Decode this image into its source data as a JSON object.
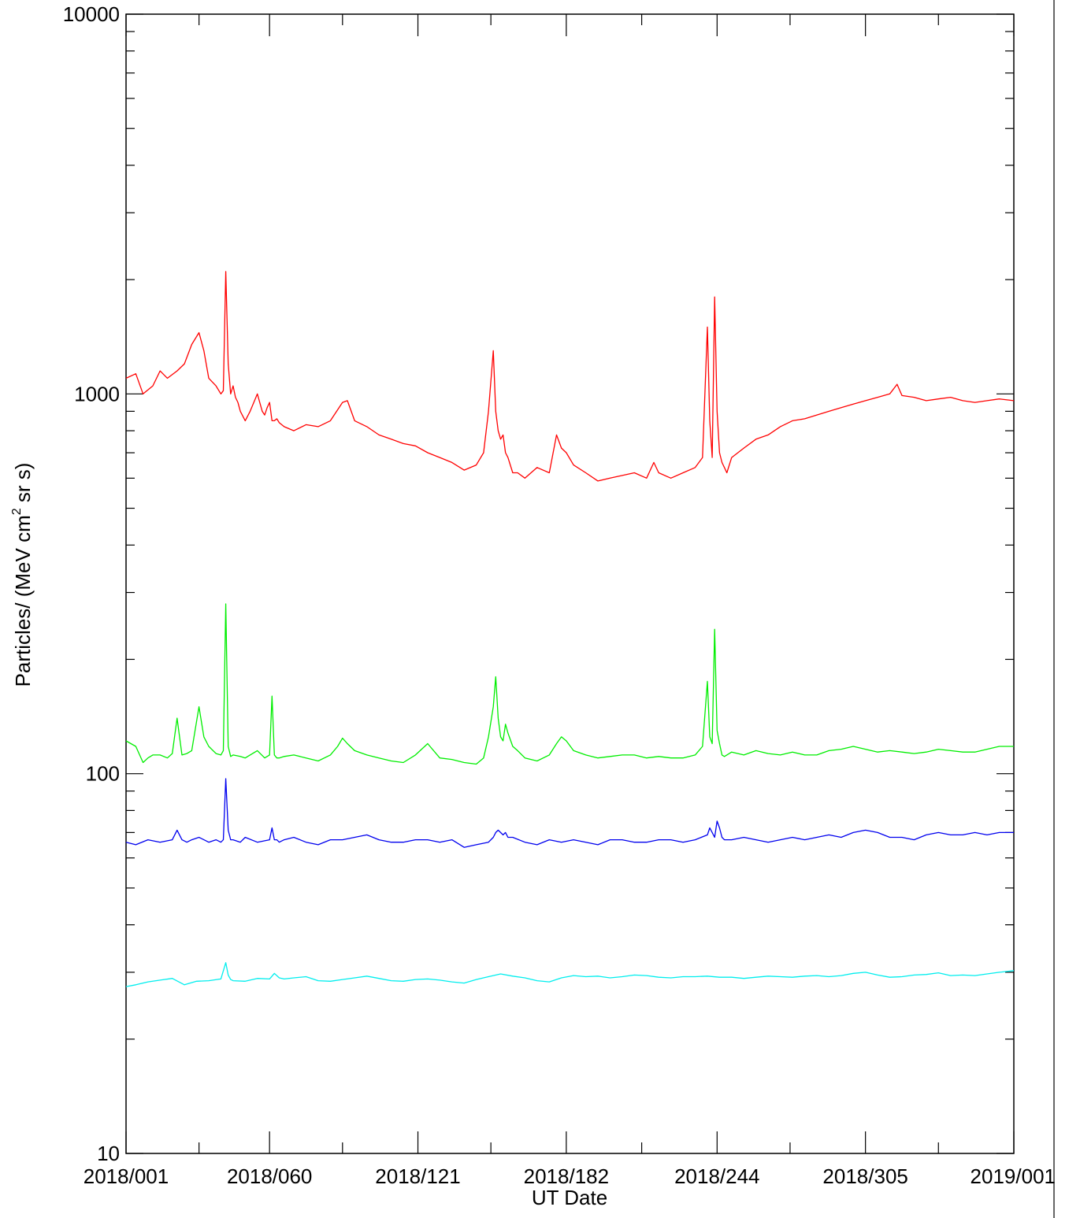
{
  "chart_data": {
    "type": "line",
    "title": "",
    "xlabel": "UT Date",
    "ylabel_prefix": "Particles/ (MeV cm",
    "ylabel_sup": "2",
    "ylabel_suffix": " sr s)",
    "yscale": "log",
    "ylim": [
      10,
      10000
    ],
    "xlim_doy": [
      1,
      366
    ],
    "x_ticks": [
      {
        "doy": 1,
        "label": "2018/001"
      },
      {
        "doy": 60,
        "label": "2018/060"
      },
      {
        "doy": 121,
        "label": "2018/121"
      },
      {
        "doy": 182,
        "label": "2018/182"
      },
      {
        "doy": 244,
        "label": "2018/244"
      },
      {
        "doy": 305,
        "label": "2018/305"
      },
      {
        "doy": 366,
        "label": "2019/001"
      }
    ],
    "y_ticks": [
      {
        "value": 10,
        "label": "10"
      },
      {
        "value": 100,
        "label": "100"
      },
      {
        "value": 1000,
        "label": "1000"
      },
      {
        "value": 10000,
        "label": "10000"
      }
    ],
    "x_minor_ticks": [
      31,
      90,
      151,
      213,
      274,
      335
    ],
    "legend": "none",
    "grid": false,
    "series": [
      {
        "color": "#ff0000",
        "x": [
          1,
          5,
          8,
          12,
          15,
          18,
          22,
          25,
          28,
          31,
          33,
          35,
          38,
          40,
          41,
          42,
          43,
          44,
          45,
          46,
          47,
          48,
          50,
          52,
          55,
          57,
          58,
          59,
          60,
          61,
          62,
          63,
          64,
          66,
          70,
          75,
          80,
          85,
          90,
          92,
          95,
          100,
          105,
          110,
          115,
          120,
          125,
          130,
          135,
          140,
          145,
          148,
          150,
          152,
          153,
          154,
          155,
          156,
          157,
          158,
          160,
          162,
          165,
          170,
          175,
          178,
          180,
          182,
          185,
          190,
          195,
          200,
          205,
          210,
          215,
          218,
          220,
          225,
          230,
          235,
          238,
          240,
          241,
          242,
          243,
          244,
          245,
          246,
          247,
          248,
          250,
          255,
          260,
          265,
          270,
          275,
          280,
          285,
          290,
          295,
          300,
          305,
          310,
          315,
          318,
          320,
          325,
          330,
          335,
          340,
          345,
          350,
          355,
          360,
          366
        ],
        "y": [
          1100,
          1130,
          1000,
          1050,
          1150,
          1100,
          1150,
          1200,
          1350,
          1450,
          1300,
          1100,
          1050,
          1000,
          1020,
          2100,
          1200,
          1000,
          1050,
          980,
          950,
          900,
          850,
          900,
          1000,
          900,
          880,
          920,
          950,
          850,
          850,
          860,
          840,
          820,
          800,
          830,
          820,
          850,
          950,
          960,
          850,
          820,
          780,
          760,
          740,
          730,
          700,
          680,
          660,
          630,
          650,
          700,
          900,
          1300,
          900,
          800,
          760,
          780,
          700,
          680,
          620,
          620,
          600,
          640,
          620,
          780,
          720,
          700,
          650,
          620,
          590,
          600,
          610,
          620,
          600,
          660,
          620,
          600,
          620,
          640,
          680,
          1500,
          850,
          680,
          1800,
          900,
          700,
          660,
          640,
          620,
          680,
          720,
          760,
          780,
          820,
          850,
          860,
          880,
          900,
          920,
          940,
          960,
          980,
          1000,
          1060,
          990,
          980,
          960,
          970,
          980,
          960,
          950,
          960,
          970,
          960
        ]
      },
      {
        "color": "#00ee00",
        "x": [
          1,
          3,
          5,
          8,
          10,
          12,
          15,
          18,
          20,
          22,
          24,
          26,
          28,
          31,
          33,
          35,
          38,
          40,
          41,
          42,
          43,
          44,
          45,
          48,
          50,
          52,
          55,
          58,
          60,
          61,
          62,
          63,
          64,
          66,
          70,
          75,
          80,
          85,
          88,
          90,
          92,
          95,
          100,
          105,
          110,
          115,
          120,
          125,
          130,
          135,
          140,
          145,
          148,
          150,
          152,
          153,
          154,
          155,
          156,
          157,
          158,
          160,
          162,
          165,
          170,
          175,
          178,
          180,
          182,
          185,
          190,
          195,
          200,
          205,
          210,
          215,
          220,
          225,
          230,
          235,
          238,
          240,
          241,
          242,
          243,
          244,
          245,
          246,
          247,
          248,
          250,
          255,
          260,
          265,
          270,
          275,
          280,
          285,
          290,
          295,
          300,
          305,
          310,
          315,
          320,
          325,
          330,
          335,
          340,
          345,
          350,
          355,
          360,
          366
        ],
        "y": [
          122,
          120,
          118,
          107,
          110,
          112,
          112,
          110,
          113,
          140,
          112,
          113,
          115,
          150,
          125,
          118,
          113,
          112,
          115,
          280,
          118,
          111,
          112,
          111,
          110,
          112,
          115,
          110,
          112,
          160,
          112,
          110,
          110,
          111,
          112,
          110,
          108,
          112,
          118,
          124,
          120,
          115,
          112,
          110,
          108,
          107,
          112,
          120,
          110,
          109,
          107,
          106,
          110,
          125,
          150,
          180,
          140,
          125,
          122,
          135,
          128,
          118,
          115,
          110,
          108,
          112,
          120,
          125,
          122,
          115,
          112,
          110,
          111,
          112,
          112,
          110,
          111,
          110,
          110,
          112,
          118,
          175,
          125,
          120,
          240,
          130,
          120,
          112,
          111,
          112,
          114,
          112,
          115,
          113,
          112,
          114,
          112,
          112,
          115,
          116,
          118,
          116,
          114,
          115,
          114,
          113,
          114,
          116,
          115,
          114,
          114,
          116,
          118,
          118
        ]
      },
      {
        "color": "#0000ee",
        "x": [
          1,
          5,
          10,
          15,
          20,
          22,
          24,
          26,
          28,
          31,
          33,
          35,
          38,
          40,
          41,
          42,
          43,
          44,
          45,
          48,
          50,
          55,
          60,
          61,
          62,
          63,
          64,
          66,
          70,
          75,
          80,
          85,
          90,
          95,
          100,
          105,
          110,
          115,
          120,
          125,
          130,
          135,
          140,
          145,
          150,
          152,
          153,
          154,
          155,
          156,
          157,
          158,
          160,
          165,
          170,
          175,
          180,
          185,
          190,
          195,
          200,
          205,
          210,
          215,
          220,
          225,
          230,
          235,
          240,
          241,
          242,
          243,
          244,
          245,
          246,
          247,
          250,
          255,
          260,
          265,
          270,
          275,
          280,
          285,
          290,
          295,
          300,
          305,
          310,
          315,
          320,
          325,
          330,
          335,
          340,
          345,
          350,
          355,
          360,
          366
        ],
        "y": [
          66,
          65,
          67,
          66,
          67,
          71,
          67,
          66,
          67,
          68,
          67,
          66,
          67,
          66,
          67,
          97,
          71,
          67,
          67,
          66,
          68,
          66,
          67,
          72,
          67,
          67,
          66,
          67,
          68,
          66,
          65,
          67,
          67,
          68,
          69,
          67,
          66,
          66,
          67,
          67,
          66,
          67,
          64,
          65,
          66,
          68,
          70,
          71,
          70,
          69,
          70,
          68,
          68,
          66,
          65,
          67,
          66,
          67,
          66,
          65,
          67,
          67,
          66,
          66,
          67,
          67,
          66,
          67,
          69,
          72,
          70,
          68,
          75,
          72,
          68,
          67,
          67,
          68,
          67,
          66,
          67,
          68,
          67,
          68,
          69,
          68,
          70,
          71,
          70,
          68,
          68,
          67,
          69,
          70,
          69,
          69,
          70,
          69,
          70,
          70
        ]
      },
      {
        "color": "#00eeee",
        "x": [
          1,
          5,
          10,
          15,
          20,
          25,
          30,
          35,
          40,
          42,
          43,
          44,
          45,
          50,
          55,
          60,
          62,
          64,
          66,
          70,
          75,
          80,
          85,
          90,
          95,
          100,
          105,
          110,
          115,
          120,
          125,
          130,
          135,
          140,
          145,
          150,
          155,
          160,
          165,
          170,
          175,
          180,
          185,
          190,
          195,
          200,
          205,
          210,
          215,
          220,
          225,
          230,
          235,
          240,
          245,
          250,
          255,
          260,
          265,
          270,
          275,
          280,
          285,
          290,
          295,
          300,
          305,
          310,
          315,
          320,
          325,
          330,
          335,
          340,
          345,
          350,
          355,
          360,
          366
        ],
        "y": [
          27.5,
          27.8,
          28.3,
          28.6,
          28.9,
          27.8,
          28.4,
          28.5,
          28.8,
          31.8,
          29.5,
          28.7,
          28.5,
          28.4,
          28.9,
          28.8,
          29.8,
          29,
          28.8,
          29,
          29.2,
          28.5,
          28.4,
          28.7,
          29,
          29.3,
          28.9,
          28.5,
          28.4,
          28.7,
          28.8,
          28.6,
          28.3,
          28.1,
          28.7,
          29.2,
          29.7,
          29.3,
          29,
          28.5,
          28.3,
          29,
          29.4,
          29.2,
          29.3,
          29,
          29.2,
          29.5,
          29.4,
          29.1,
          29,
          29.2,
          29.2,
          29.3,
          29.1,
          29.1,
          28.9,
          29.1,
          29.3,
          29.2,
          29.1,
          29.3,
          29.4,
          29.2,
          29.4,
          29.8,
          30,
          29.5,
          29.1,
          29.2,
          29.5,
          29.6,
          29.9,
          29.4,
          29.5,
          29.4,
          29.7,
          30,
          30.3
        ]
      }
    ]
  }
}
